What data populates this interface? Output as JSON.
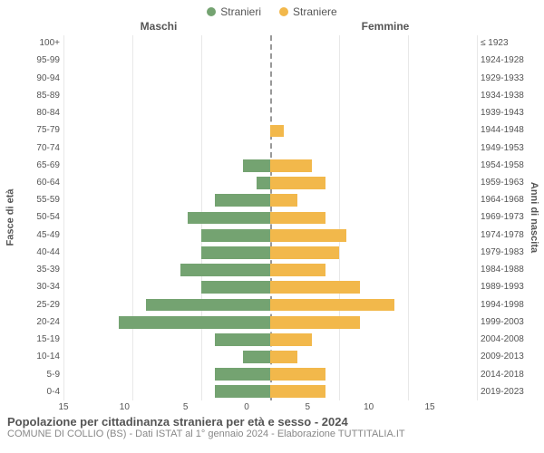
{
  "legend": {
    "male": {
      "label": "Stranieri",
      "color": "#74a371"
    },
    "female": {
      "label": "Straniere",
      "color": "#f2b84b"
    }
  },
  "headers": {
    "left": "Maschi",
    "right": "Femmine"
  },
  "yaxis": {
    "left_label": "Fasce di età",
    "right_label": "Anni di nascita"
  },
  "xaxis": {
    "min": -15,
    "max": 15,
    "step": 5,
    "ticks": [
      15,
      10,
      5,
      0,
      5,
      10,
      15
    ]
  },
  "title": "Popolazione per cittadinanza straniera per età e sesso - 2024",
  "subtitle": "COMUNE DI COLLIO (BS) - Dati ISTAT al 1° gennaio 2024 - Elaborazione TUTTITALIA.IT",
  "background_color": "#ffffff",
  "grid_color": "#e8e8e8",
  "center_line_color": "#999999",
  "rows": [
    {
      "age": "100+",
      "birth": "≤ 1923",
      "m": 0,
      "f": 0
    },
    {
      "age": "95-99",
      "birth": "1924-1928",
      "m": 0,
      "f": 0
    },
    {
      "age": "90-94",
      "birth": "1929-1933",
      "m": 0,
      "f": 0
    },
    {
      "age": "85-89",
      "birth": "1934-1938",
      "m": 0,
      "f": 0
    },
    {
      "age": "80-84",
      "birth": "1939-1943",
      "m": 0,
      "f": 0
    },
    {
      "age": "75-79",
      "birth": "1944-1948",
      "m": 0,
      "f": 1
    },
    {
      "age": "70-74",
      "birth": "1949-1953",
      "m": 0,
      "f": 0
    },
    {
      "age": "65-69",
      "birth": "1954-1958",
      "m": 2,
      "f": 3
    },
    {
      "age": "60-64",
      "birth": "1959-1963",
      "m": 1,
      "f": 4
    },
    {
      "age": "55-59",
      "birth": "1964-1968",
      "m": 4,
      "f": 2
    },
    {
      "age": "50-54",
      "birth": "1969-1973",
      "m": 6,
      "f": 4
    },
    {
      "age": "45-49",
      "birth": "1974-1978",
      "m": 5,
      "f": 5.5
    },
    {
      "age": "40-44",
      "birth": "1979-1983",
      "m": 5,
      "f": 5
    },
    {
      "age": "35-39",
      "birth": "1984-1988",
      "m": 6.5,
      "f": 4
    },
    {
      "age": "30-34",
      "birth": "1989-1993",
      "m": 5,
      "f": 6.5
    },
    {
      "age": "25-29",
      "birth": "1994-1998",
      "m": 9,
      "f": 9
    },
    {
      "age": "20-24",
      "birth": "1999-2003",
      "m": 11,
      "f": 6.5
    },
    {
      "age": "15-19",
      "birth": "2004-2008",
      "m": 4,
      "f": 3
    },
    {
      "age": "10-14",
      "birth": "2009-2013",
      "m": 2,
      "f": 2
    },
    {
      "age": "5-9",
      "birth": "2014-2018",
      "m": 4,
      "f": 4
    },
    {
      "age": "0-4",
      "birth": "2019-2023",
      "m": 4,
      "f": 4
    }
  ]
}
